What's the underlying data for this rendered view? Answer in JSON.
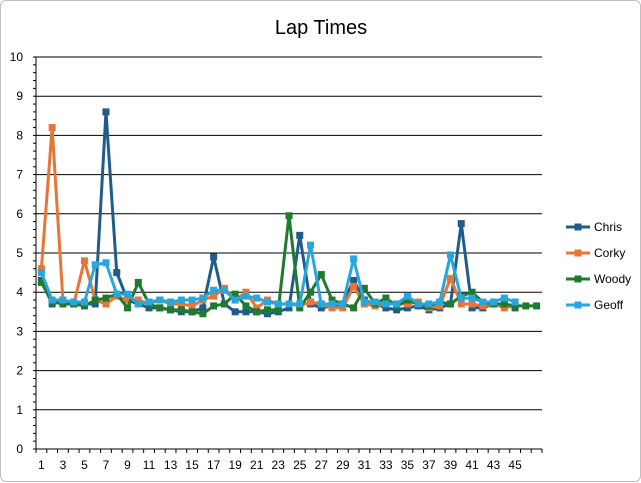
{
  "chart_data": {
    "type": "line",
    "title": "Lap Times",
    "xlabel": "",
    "ylabel": "",
    "ylim": [
      0,
      10
    ],
    "ytick_step": 1,
    "x": [
      1,
      2,
      3,
      4,
      5,
      6,
      7,
      8,
      9,
      10,
      11,
      12,
      13,
      14,
      15,
      16,
      17,
      18,
      19,
      20,
      21,
      22,
      23,
      24,
      25,
      26,
      27,
      28,
      29,
      30,
      31,
      32,
      33,
      34,
      35,
      36,
      37,
      38,
      39,
      40,
      41,
      42,
      43,
      44,
      45,
      46,
      47
    ],
    "x_tick_labels": [
      "1",
      "3",
      "5",
      "7",
      "9",
      "11",
      "13",
      "15",
      "17",
      "19",
      "21",
      "23",
      "25",
      "27",
      "29",
      "31",
      "33",
      "35",
      "37",
      "39",
      "41",
      "43",
      "45"
    ],
    "grid": "horizontal",
    "legend_position": "right",
    "series": [
      {
        "name": "Chris",
        "color": "#1f5c8a",
        "values": [
          4.3,
          3.7,
          3.8,
          3.7,
          3.7,
          3.7,
          8.6,
          4.5,
          3.8,
          3.7,
          3.6,
          3.6,
          3.55,
          3.5,
          3.5,
          3.6,
          4.9,
          3.7,
          3.5,
          3.5,
          3.5,
          3.45,
          3.5,
          3.6,
          5.45,
          3.7,
          3.6,
          3.65,
          3.7,
          4.3,
          3.8,
          3.7,
          3.6,
          3.55,
          3.6,
          3.65,
          3.55,
          3.6,
          3.7,
          5.75,
          3.6,
          3.6,
          3.7,
          3.7,
          3.6,
          null,
          null
        ]
      },
      {
        "name": "Corky",
        "color": "#e87534",
        "values": [
          4.6,
          8.2,
          3.8,
          3.7,
          4.8,
          3.8,
          3.7,
          3.9,
          3.8,
          3.8,
          3.7,
          3.8,
          3.7,
          3.7,
          3.65,
          3.8,
          3.9,
          4.1,
          3.8,
          4.0,
          3.6,
          3.8,
          3.7,
          3.7,
          3.65,
          3.75,
          3.7,
          3.6,
          3.6,
          4.15,
          3.7,
          3.65,
          3.7,
          3.7,
          3.7,
          3.75,
          3.6,
          3.65,
          4.35,
          3.7,
          3.7,
          3.65,
          3.7,
          3.6,
          3.65,
          null,
          null
        ]
      },
      {
        "name": "Woody",
        "color": "#1e7a2e",
        "values": [
          4.25,
          3.75,
          3.7,
          3.7,
          3.65,
          3.8,
          3.85,
          3.95,
          3.6,
          4.25,
          3.7,
          3.6,
          3.55,
          3.55,
          3.5,
          3.45,
          3.65,
          3.7,
          3.95,
          3.65,
          3.5,
          3.55,
          3.55,
          5.95,
          3.6,
          4.0,
          4.45,
          3.8,
          3.7,
          3.6,
          4.1,
          3.7,
          3.85,
          3.65,
          3.8,
          3.7,
          3.65,
          3.75,
          3.7,
          3.9,
          4.0,
          3.75,
          3.7,
          3.7,
          3.65,
          3.65,
          3.65
        ]
      },
      {
        "name": "Geoff",
        "color": "#2aa6dc",
        "values": [
          4.5,
          3.8,
          3.8,
          3.75,
          3.75,
          4.7,
          4.75,
          3.95,
          3.95,
          3.7,
          3.75,
          3.8,
          3.75,
          3.8,
          3.8,
          3.85,
          4.05,
          4.05,
          3.8,
          3.9,
          3.85,
          3.75,
          3.7,
          3.7,
          3.7,
          5.2,
          3.7,
          3.7,
          3.7,
          4.85,
          3.75,
          3.75,
          3.7,
          3.7,
          3.9,
          3.7,
          3.7,
          3.75,
          4.95,
          3.85,
          3.85,
          3.75,
          3.75,
          3.85,
          3.75,
          null,
          null
        ]
      }
    ]
  }
}
